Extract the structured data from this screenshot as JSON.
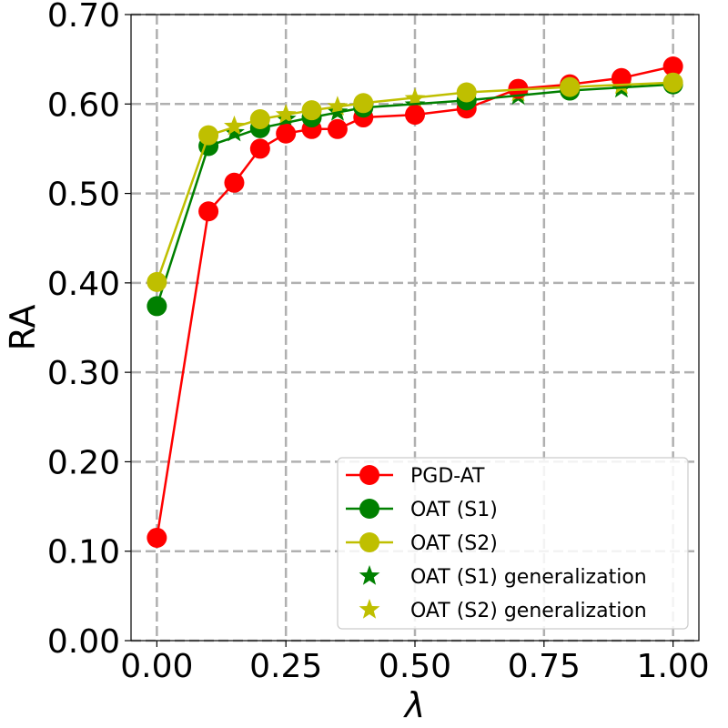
{
  "chart_data": {
    "type": "line",
    "xlabel": "λ",
    "ylabel": "RA",
    "xlim": [
      -0.05,
      1.05
    ],
    "ylim": [
      0.0,
      0.7
    ],
    "xticks": [
      0.0,
      0.25,
      0.5,
      0.75,
      1.0
    ],
    "xtick_labels": [
      "0.00",
      "0.25",
      "0.50",
      "0.75",
      "1.00"
    ],
    "yticks": [
      0.0,
      0.1,
      0.2,
      0.3,
      0.4,
      0.5,
      0.6,
      0.7
    ],
    "ytick_labels": [
      "0.00",
      "0.10",
      "0.20",
      "0.30",
      "0.40",
      "0.50",
      "0.60",
      "0.70"
    ],
    "grid": true,
    "legend_position": "bottom-right",
    "series": [
      {
        "name": "PGD-AT",
        "kind": "line",
        "color": "#ff0000",
        "x": [
          0.0,
          0.1,
          0.15,
          0.2,
          0.25,
          0.3,
          0.35,
          0.4,
          0.5,
          0.6,
          0.7,
          0.8,
          0.9,
          1.0
        ],
        "y": [
          0.115,
          0.48,
          0.512,
          0.55,
          0.567,
          0.572,
          0.572,
          0.585,
          0.588,
          0.595,
          0.617,
          0.622,
          0.629,
          0.642
        ]
      },
      {
        "name": "OAT (S1)",
        "kind": "line",
        "color": "#008000",
        "x": [
          0.0,
          0.1,
          0.2,
          0.3,
          0.4,
          0.6,
          0.8,
          1.0
        ],
        "y": [
          0.374,
          0.553,
          0.573,
          0.585,
          0.596,
          0.604,
          0.615,
          0.622
        ]
      },
      {
        "name": "OAT (S2)",
        "kind": "line",
        "color": "#bfbf00",
        "x": [
          0.0,
          0.1,
          0.2,
          0.3,
          0.4,
          0.6,
          0.8,
          1.0
        ],
        "y": [
          0.401,
          0.565,
          0.583,
          0.593,
          0.601,
          0.613,
          0.619,
          0.624
        ]
      },
      {
        "name": "OAT (S1) generalization",
        "kind": "scatter",
        "marker": "star",
        "color": "#008000",
        "x": [
          0.15,
          0.25,
          0.35,
          0.5,
          0.7,
          0.9
        ],
        "y": [
          0.568,
          0.583,
          0.591,
          0.599,
          0.609,
          0.617
        ]
      },
      {
        "name": "OAT (S2) generalization",
        "kind": "scatter",
        "marker": "star",
        "color": "#bfbf00",
        "x": [
          0.15,
          0.25,
          0.35,
          0.5,
          0.7,
          0.9
        ],
        "y": [
          0.575,
          0.588,
          0.597,
          0.606,
          0.613,
          0.621
        ]
      }
    ]
  }
}
